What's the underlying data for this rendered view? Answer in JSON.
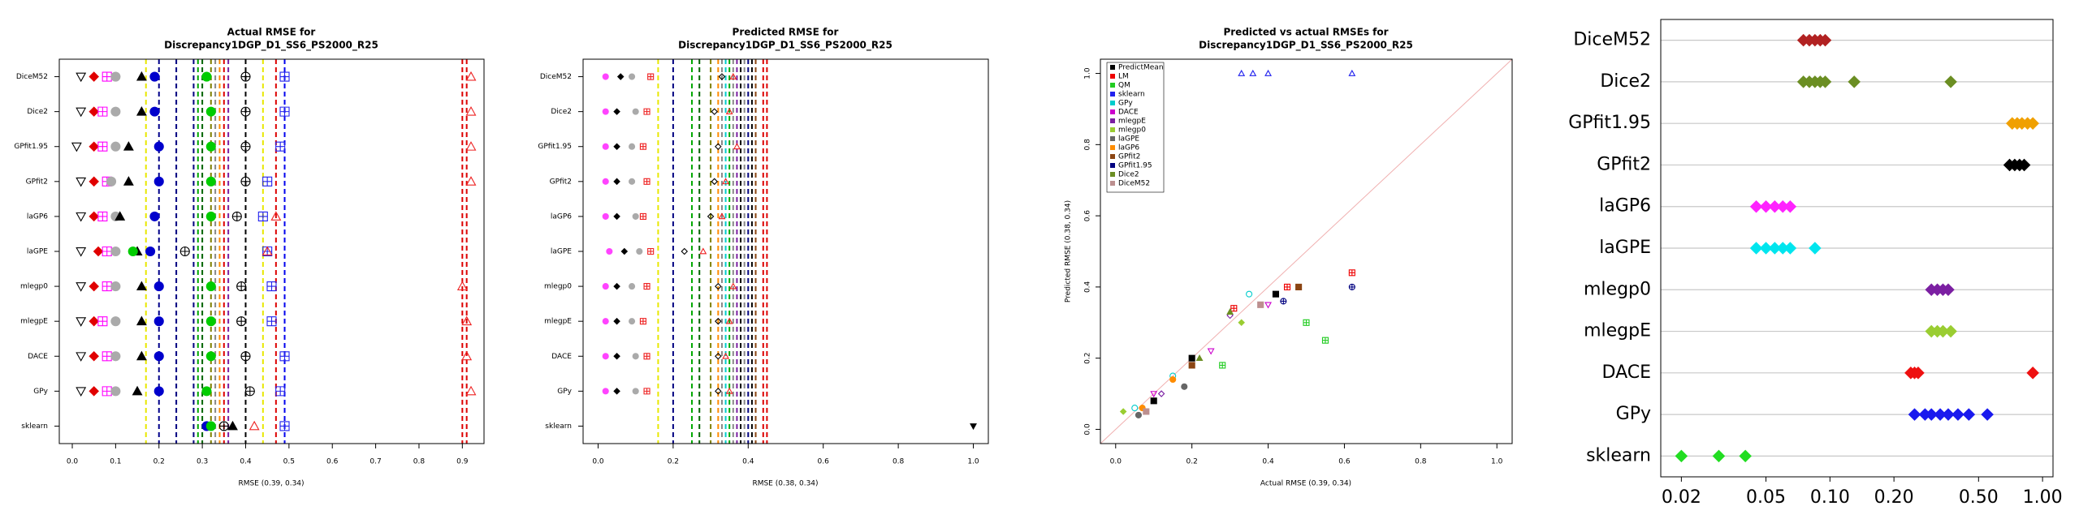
{
  "chart_data": [
    {
      "type": "dotplot",
      "title": [
        "Actual RMSE for",
        "Discrepancy1DGP_D1_SS6_PS2000_R25"
      ],
      "xlabel": "RMSE (0.39, 0.34)",
      "categories": [
        "DiceM52",
        "Dice2",
        "GPfit1.95",
        "GPfit2",
        "laGP6",
        "laGPE",
        "mlegp0",
        "mlegpE",
        "DACE",
        "GPy",
        "sklearn"
      ],
      "xlim": [
        -0.03,
        0.95
      ],
      "xticks": [
        {
          "value": 0,
          "label": "0.0"
        },
        {
          "value": 0.1,
          "label": "0.1"
        },
        {
          "value": 0.2,
          "label": "0.2"
        },
        {
          "value": 0.3,
          "label": "0.3"
        },
        {
          "value": 0.4,
          "label": "0.4"
        },
        {
          "value": 0.5,
          "label": "0.5"
        },
        {
          "value": 0.6,
          "label": "0.6"
        },
        {
          "value": 0.7,
          "label": "0.7"
        },
        {
          "value": 0.8,
          "label": "0.8"
        },
        {
          "value": 0.9,
          "label": "0.9"
        }
      ],
      "series": [
        {
          "marker": "triangle-down-open",
          "color": "#000000",
          "values": [
            0.02,
            0.02,
            0.01,
            0.02,
            0.02,
            0.02,
            0.02,
            0.02,
            0.02,
            0.02,
            null
          ]
        },
        {
          "marker": "diamond",
          "color": "#e00000",
          "values": [
            0.05,
            0.05,
            0.05,
            0.05,
            0.05,
            0.06,
            0.05,
            0.05,
            0.05,
            0.05,
            null
          ]
        },
        {
          "marker": "square-plus",
          "color": "#ff00ff",
          "values": [
            0.08,
            0.07,
            0.07,
            0.08,
            0.07,
            0.08,
            0.08,
            0.07,
            0.08,
            0.08,
            null
          ]
        },
        {
          "marker": "circle",
          "color": "#aaaaaa",
          "values": [
            0.1,
            0.1,
            0.1,
            0.09,
            0.1,
            0.1,
            0.1,
            0.1,
            0.1,
            0.1,
            null
          ]
        },
        {
          "marker": "triangle",
          "color": "#000000",
          "values": [
            0.16,
            0.16,
            0.13,
            0.13,
            0.11,
            0.15,
            0.16,
            0.16,
            0.16,
            0.15,
            0.37
          ]
        },
        {
          "marker": "circle",
          "color": "#0000cc",
          "values": [
            0.19,
            0.19,
            0.2,
            0.2,
            0.19,
            0.18,
            0.2,
            0.2,
            0.2,
            0.2,
            0.31
          ]
        },
        {
          "marker": "circle",
          "color": "#00cc00",
          "values": [
            0.31,
            0.32,
            0.32,
            0.32,
            0.32,
            0.14,
            0.32,
            0.32,
            0.32,
            0.31,
            0.32
          ]
        },
        {
          "marker": "circle-plus",
          "color": "#000000",
          "values": [
            0.4,
            0.4,
            0.4,
            0.4,
            0.38,
            0.26,
            0.39,
            0.39,
            0.4,
            0.41,
            0.35
          ]
        },
        {
          "marker": "square-plus",
          "color": "#2222ee",
          "values": [
            0.49,
            0.49,
            0.48,
            0.45,
            0.44,
            0.45,
            0.46,
            0.46,
            0.49,
            0.48,
            0.49
          ]
        },
        {
          "marker": "triangle-open",
          "color": "#ee2222",
          "values": [
            0.92,
            0.92,
            0.92,
            0.92,
            0.47,
            0.45,
            0.9,
            0.91,
            0.91,
            0.92,
            0.42
          ]
        }
      ],
      "lines": [
        {
          "value": 0.17,
          "color": "#e8e800"
        },
        {
          "value": 0.2,
          "color": "#00008b"
        },
        {
          "value": 0.24,
          "color": "#000080"
        },
        {
          "value": 0.28,
          "color": "#000080"
        },
        {
          "value": 0.29,
          "color": "#00aa00"
        },
        {
          "value": 0.3,
          "color": "#006400"
        },
        {
          "value": 0.32,
          "color": "#808000"
        },
        {
          "value": 0.33,
          "color": "#888888"
        },
        {
          "value": 0.34,
          "color": "#ff8c00"
        },
        {
          "value": 0.35,
          "color": "#dd0000"
        },
        {
          "value": 0.36,
          "color": "#7b1fa2"
        },
        {
          "value": 0.4,
          "color": "#000000"
        },
        {
          "value": 0.44,
          "color": "#e8e800"
        },
        {
          "value": 0.47,
          "color": "#dd0000"
        },
        {
          "value": 0.49,
          "color": "#0000ee"
        },
        {
          "value": 0.9,
          "color": "#dd0000"
        },
        {
          "value": 0.91,
          "color": "#dd0000"
        }
      ]
    },
    {
      "type": "dotplot",
      "title": [
        "Predicted RMSE for",
        "Discrepancy1DGP_D1_SS6_PS2000_R25"
      ],
      "xlabel": "RMSE (0.38, 0.34)",
      "categories": [
        "DiceM52",
        "Dice2",
        "GPfit1.95",
        "GPfit2",
        "laGP6",
        "laGPE",
        "mlegp0",
        "mlegpE",
        "DACE",
        "GPy",
        "sklearn"
      ],
      "xlim": [
        -0.04,
        1.04
      ],
      "xticks": [
        {
          "value": 0,
          "label": "0.0"
        },
        {
          "value": 0.2,
          "label": "0.2"
        },
        {
          "value": 0.4,
          "label": "0.4"
        },
        {
          "value": 0.6,
          "label": "0.6"
        },
        {
          "value": 0.8,
          "label": "0.8"
        },
        {
          "value": 1,
          "label": "1.0"
        }
      ],
      "series": [
        {
          "marker": "circle",
          "color": "#ff44ff",
          "values": [
            0.02,
            0.02,
            0.02,
            0.02,
            0.02,
            0.03,
            0.02,
            0.02,
            0.02,
            0.02,
            null
          ]
        },
        {
          "marker": "diamond",
          "color": "#000000",
          "values": [
            0.06,
            0.05,
            0.05,
            0.05,
            0.05,
            0.07,
            0.05,
            0.05,
            0.05,
            0.05,
            null
          ]
        },
        {
          "marker": "circle",
          "color": "#aaaaaa",
          "values": [
            0.09,
            0.1,
            0.09,
            0.09,
            0.1,
            0.11,
            0.09,
            0.09,
            0.1,
            0.1,
            null
          ]
        },
        {
          "marker": "square-plus",
          "color": "#ee2222",
          "values": [
            0.14,
            0.13,
            0.12,
            0.13,
            0.12,
            0.14,
            0.13,
            0.12,
            0.13,
            0.13,
            null
          ]
        },
        {
          "marker": "diamond-open",
          "color": "#000000",
          "values": [
            0.33,
            0.31,
            0.32,
            0.31,
            0.3,
            0.23,
            0.32,
            0.32,
            0.32,
            0.32,
            null
          ]
        },
        {
          "marker": "triangle-open",
          "color": "#ee2222",
          "values": [
            0.36,
            0.35,
            0.37,
            0.34,
            0.33,
            0.28,
            0.36,
            0.35,
            0.34,
            0.35,
            null
          ]
        },
        {
          "marker": "triangle-down",
          "color": "#000000",
          "values": [
            null,
            null,
            null,
            null,
            null,
            null,
            null,
            null,
            null,
            null,
            1.0
          ]
        }
      ],
      "lines": [
        {
          "value": 0.16,
          "color": "#e8e800"
        },
        {
          "value": 0.2,
          "color": "#000080"
        },
        {
          "value": 0.25,
          "color": "#00aa00"
        },
        {
          "value": 0.27,
          "color": "#006400"
        },
        {
          "value": 0.3,
          "color": "#808000"
        },
        {
          "value": 0.32,
          "color": "#ff8c00"
        },
        {
          "value": 0.33,
          "color": "#888888"
        },
        {
          "value": 0.34,
          "color": "#00cccc"
        },
        {
          "value": 0.35,
          "color": "#00aa00"
        },
        {
          "value": 0.36,
          "color": "#888888"
        },
        {
          "value": 0.37,
          "color": "#7b1fa2"
        },
        {
          "value": 0.38,
          "color": "#000000"
        },
        {
          "value": 0.39,
          "color": "#888888"
        },
        {
          "value": 0.4,
          "color": "#000080"
        },
        {
          "value": 0.41,
          "color": "#000000"
        },
        {
          "value": 0.42,
          "color": "#8b4513"
        },
        {
          "value": 0.44,
          "color": "#dd0000"
        },
        {
          "value": 0.45,
          "color": "#dd0000"
        }
      ]
    },
    {
      "type": "scatter",
      "title": [
        "Predicted vs actual RMSEs for",
        "Discrepancy1DGP_D1_SS6_PS2000_R25"
      ],
      "xlabel": "Actual RMSE (0.39, 0.34)",
      "ylabel": "Predicted RMSE (0.38, 0.34)",
      "xlim": [
        -0.04,
        1.04
      ],
      "ylim": [
        -0.04,
        1.04
      ],
      "xticks": [
        {
          "value": 0,
          "label": "0.0"
        },
        {
          "value": 0.2,
          "label": "0.2"
        },
        {
          "value": 0.4,
          "label": "0.4"
        },
        {
          "value": 0.6,
          "label": "0.6"
        },
        {
          "value": 0.8,
          "label": "0.8"
        },
        {
          "value": 1,
          "label": "1.0"
        }
      ],
      "yticks": [
        {
          "value": 0,
          "label": "0.0"
        },
        {
          "value": 0.2,
          "label": "0.2"
        },
        {
          "value": 0.4,
          "label": "0.4"
        },
        {
          "value": 0.6,
          "label": "0.6"
        },
        {
          "value": 0.8,
          "label": "0.8"
        },
        {
          "value": 1,
          "label": "1.0"
        }
      ],
      "legend": "top-left",
      "series": [
        {
          "name": "PredictMean",
          "color": "#000000",
          "marker": "square",
          "x": [
            0.42,
            0.2,
            0.1
          ],
          "y": [
            0.38,
            0.2,
            0.08
          ]
        },
        {
          "name": "LM",
          "color": "#ee0000",
          "marker": "square-plus",
          "x": [
            0.45,
            0.31,
            0.62
          ],
          "y": [
            0.4,
            0.34,
            0.44
          ]
        },
        {
          "name": "QM",
          "color": "#22cc22",
          "marker": "square-plus",
          "x": [
            0.5,
            0.28,
            0.55
          ],
          "y": [
            0.3,
            0.18,
            0.25
          ]
        },
        {
          "name": "sklearn",
          "color": "#2222ee",
          "marker": "triangle-open",
          "x": [
            0.33,
            0.36,
            0.4,
            0.62
          ],
          "y": [
            1.0,
            1.0,
            1.0,
            1.0
          ]
        },
        {
          "name": "GPy",
          "color": "#00cccc",
          "marker": "circle-open",
          "x": [
            0.35,
            0.15,
            0.05
          ],
          "y": [
            0.38,
            0.15,
            0.06
          ]
        },
        {
          "name": "DACE",
          "color": "#cc00cc",
          "marker": "triangle-down-open",
          "x": [
            0.1,
            0.25,
            0.4
          ],
          "y": [
            0.1,
            0.22,
            0.35
          ]
        },
        {
          "name": "mlegpE",
          "color": "#7b1fa2",
          "marker": "diamond-open",
          "x": [
            0.3,
            0.12
          ],
          "y": [
            0.32,
            0.1
          ]
        },
        {
          "name": "mlegp0",
          "color": "#9acd32",
          "marker": "diamond",
          "x": [
            0.33,
            0.02
          ],
          "y": [
            0.3,
            0.05
          ]
        },
        {
          "name": "laGPE",
          "color": "#666666",
          "marker": "circle",
          "x": [
            0.06,
            0.18
          ],
          "y": [
            0.04,
            0.12
          ]
        },
        {
          "name": "laGP6",
          "color": "#ff8c00",
          "marker": "circle",
          "x": [
            0.07,
            0.15
          ],
          "y": [
            0.06,
            0.14
          ]
        },
        {
          "name": "GPfit2",
          "color": "#8b4513",
          "marker": "square",
          "x": [
            0.48,
            0.2
          ],
          "y": [
            0.4,
            0.18
          ]
        },
        {
          "name": "GPfit1.95",
          "color": "#000080",
          "marker": "circle-plus",
          "x": [
            0.44,
            0.62
          ],
          "y": [
            0.36,
            0.4
          ]
        },
        {
          "name": "Dice2",
          "color": "#6b8e23",
          "marker": "triangle",
          "x": [
            0.3,
            0.22
          ],
          "y": [
            0.33,
            0.2
          ]
        },
        {
          "name": "DiceM52",
          "color": "#bc8f8f",
          "marker": "square",
          "x": [
            0.38,
            0.08
          ],
          "y": [
            0.35,
            0.05
          ]
        }
      ]
    },
    {
      "type": "strip",
      "categories": [
        "DiceM52",
        "Dice2",
        "GPfit1.95",
        "GPfit2",
        "laGP6",
        "laGPE",
        "mlegp0",
        "mlegpE",
        "DACE",
        "GPy",
        "sklearn"
      ],
      "xscale": "log",
      "xlim": [
        0.016,
        1.12
      ],
      "xticks": [
        0.02,
        0.05,
        {
          "value": 0.1,
          "label": "0.10"
        },
        {
          "value": 0.2,
          "label": "0.20"
        },
        {
          "value": 0.5,
          "label": "0.50"
        },
        {
          "value": 1,
          "label": "1.00"
        }
      ],
      "grid": true,
      "series": [
        {
          "color": "#b22222",
          "values": [
            0.075,
            0.08,
            0.085,
            0.09,
            0.095
          ]
        },
        {
          "color": "#6b8e23",
          "values": [
            0.075,
            0.08,
            0.085,
            0.09,
            0.095,
            0.13,
            0.37
          ]
        },
        {
          "color": "#f0a000",
          "values": [
            0.72,
            0.76,
            0.8,
            0.85,
            0.9
          ]
        },
        {
          "color": "#000000",
          "values": [
            0.7,
            0.74,
            0.78,
            0.82
          ]
        },
        {
          "color": "#ff22ff",
          "values": [
            0.045,
            0.05,
            0.055,
            0.06,
            0.065
          ]
        },
        {
          "color": "#00e5ee",
          "values": [
            0.045,
            0.05,
            0.055,
            0.06,
            0.065,
            0.085
          ]
        },
        {
          "color": "#7b1fa2",
          "values": [
            0.3,
            0.32,
            0.34,
            0.36
          ]
        },
        {
          "color": "#9acd32",
          "values": [
            0.3,
            0.32,
            0.34,
            0.37
          ]
        },
        {
          "color": "#ee1111",
          "values": [
            0.24,
            0.25,
            0.26,
            0.9
          ]
        },
        {
          "color": "#1a1aee",
          "values": [
            0.25,
            0.28,
            0.3,
            0.33,
            0.36,
            0.4,
            0.45,
            0.55
          ]
        },
        {
          "color": "#22dd22",
          "values": [
            0.02,
            0.03,
            0.04
          ]
        }
      ]
    }
  ]
}
